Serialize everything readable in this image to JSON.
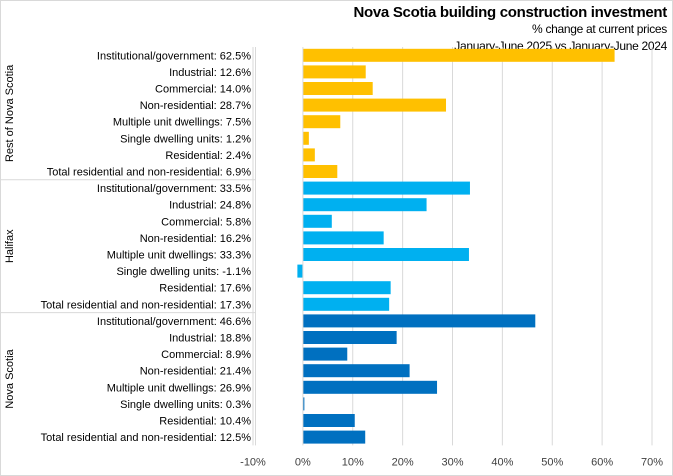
{
  "chart_data": {
    "type": "bar",
    "orientation": "horizontal",
    "title": "Nova Scotia building construction investment",
    "subtitle": "% change at current prices",
    "subtitle2": "January-June 2025 vs January-June 2024",
    "xlim": [
      -10,
      70
    ],
    "x_ticks": [
      "-10%",
      "0%",
      "10%",
      "20%",
      "30%",
      "40%",
      "50%",
      "60%",
      "70%"
    ],
    "grid": true,
    "groups": [
      {
        "name": "Rest of Nova Scotia",
        "color": "#FFC000",
        "categories": [
          "Institutional/government: 62.5%",
          "Industrial: 12.6%",
          "Commercial: 14.0%",
          "Non-residential: 28.7%",
          "Multiple unit dwellings: 7.5%",
          "Single dwelling units: 1.2%",
          "Residential: 2.4%",
          "Total residential and non-residential: 6.9%"
        ],
        "values": [
          62.5,
          12.6,
          14.0,
          28.7,
          7.5,
          1.2,
          2.4,
          6.9
        ]
      },
      {
        "name": "Halifax",
        "color": "#00B0F0",
        "categories": [
          "Institutional/government: 33.5%",
          "Industrial: 24.8%",
          "Commercial: 5.8%",
          "Non-residential: 16.2%",
          "Multiple unit dwellings: 33.3%",
          "Single dwelling units: -1.1%",
          "Residential: 17.6%",
          "Total residential and non-residential: 17.3%"
        ],
        "values": [
          33.5,
          24.8,
          5.8,
          16.2,
          33.3,
          -1.1,
          17.6,
          17.3
        ]
      },
      {
        "name": "Nova Scotia",
        "color": "#0070C0",
        "categories": [
          "Institutional/government: 46.6%",
          "Industrial: 18.8%",
          "Commercial: 8.9%",
          "Non-residential: 21.4%",
          "Multiple unit dwellings: 26.9%",
          "Single dwelling units: 0.3%",
          "Residential: 10.4%",
          "Total residential and non-residential: 12.5%"
        ],
        "values": [
          46.6,
          18.8,
          8.9,
          21.4,
          26.9,
          0.3,
          10.4,
          12.5
        ]
      }
    ]
  }
}
